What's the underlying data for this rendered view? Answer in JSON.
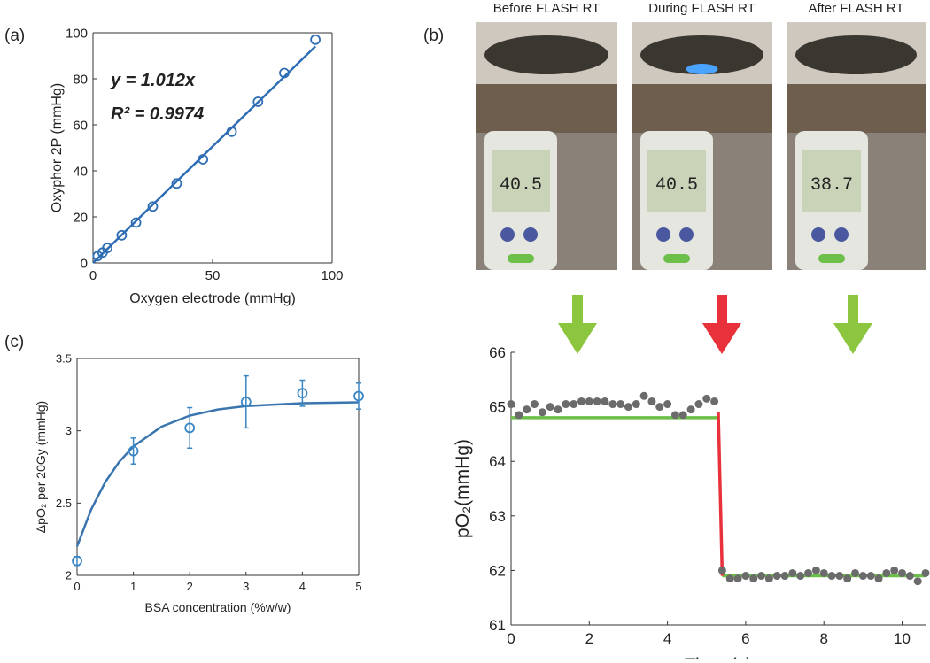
{
  "panel_labels": [
    "(a)",
    "(b)",
    "(c)"
  ],
  "photos": [
    {
      "caption": "Before FLASH RT",
      "reading": "40.5"
    },
    {
      "caption": "During FLASH RT",
      "reading": "40.5"
    },
    {
      "caption": "After FLASH RT",
      "reading": "38.7"
    }
  ],
  "chart_data": [
    {
      "type": "scatter",
      "x_label": "Oxygen electrode (mmHg)",
      "y_label": "Oxyphor 2P (mmHg)",
      "annotations": [
        "y = 1.012x",
        "R² = 0.9974"
      ],
      "x": [
        2,
        4,
        6,
        12,
        18,
        25,
        35,
        46,
        58,
        69,
        80,
        93
      ],
      "values": [
        3,
        4.5,
        6.5,
        12,
        17.5,
        24.5,
        34.5,
        45,
        57,
        70,
        82.5,
        97
      ],
      "color": "#2e6db4",
      "marker": "circle",
      "lines": [
        {
          "x": [
            0,
            93
          ],
          "y": [
            0,
            94.1
          ],
          "color": "#2e6db4"
        }
      ],
      "xlim": [
        0,
        100
      ],
      "ylim": [
        0,
        100
      ],
      "xticks": [
        0,
        50,
        100
      ],
      "yticks": [
        0,
        20,
        40,
        60,
        80,
        100
      ]
    },
    {
      "type": "scatter",
      "x_label": "BSA concentration (%w/w)",
      "y_label": "ΔpO₂ per 20Gy (mmHg)",
      "x": [
        0,
        1,
        2,
        3,
        4,
        5
      ],
      "values": [
        2.1,
        2.86,
        3.02,
        3.2,
        3.26,
        3.24
      ],
      "errors": [
        0.03,
        0.09,
        0.14,
        0.18,
        0.09,
        0.09
      ],
      "color": "#3a86c4",
      "marker": "circle",
      "lines": [
        {
          "x": [
            0,
            0.25,
            0.5,
            0.75,
            1,
            1.5,
            2,
            2.5,
            3,
            4,
            5
          ],
          "y": [
            2.2,
            2.455,
            2.645,
            2.786,
            2.892,
            3.029,
            3.105,
            3.147,
            3.171,
            3.191,
            3.197
          ],
          "color": "#3a75b0"
        }
      ],
      "xlim": [
        0,
        5
      ],
      "ylim": [
        2,
        3.5
      ],
      "xticks": [
        0,
        1,
        2,
        3,
        4,
        5
      ],
      "yticks": [
        2,
        2.5,
        3,
        3.5
      ]
    },
    {
      "type": "scatter",
      "x_label": "Time (s)",
      "y_label": "pO₂(mmHg)",
      "x": [
        0,
        0.2,
        0.4,
        0.6,
        0.8,
        1,
        1.2,
        1.4,
        1.6,
        1.8,
        2,
        2.2,
        2.4,
        2.6,
        2.8,
        3,
        3.2,
        3.4,
        3.6,
        3.8,
        4,
        4.2,
        4.4,
        4.6,
        4.8,
        5,
        5.2,
        5.4,
        5.6,
        5.8,
        6,
        6.2,
        6.4,
        6.6,
        6.8,
        7,
        7.2,
        7.4,
        7.6,
        7.8,
        8,
        8.2,
        8.4,
        8.6,
        8.8,
        9,
        9.2,
        9.4,
        9.6,
        9.8,
        10,
        10.2,
        10.4,
        10.6
      ],
      "values": [
        65.05,
        64.85,
        64.95,
        65.05,
        64.9,
        65,
        64.95,
        65.05,
        65.05,
        65.1,
        65.1,
        65.1,
        65.1,
        65.05,
        65.05,
        65,
        65.05,
        65.2,
        65.1,
        65,
        65.05,
        64.85,
        64.85,
        64.95,
        65.05,
        65.15,
        65.1,
        62,
        61.85,
        61.85,
        61.9,
        61.85,
        61.9,
        61.85,
        61.9,
        61.9,
        61.95,
        61.9,
        61.95,
        62,
        61.95,
        61.9,
        61.9,
        61.85,
        61.95,
        61.9,
        61.9,
        61.85,
        61.95,
        62,
        61.95,
        61.9,
        61.8,
        61.95
      ],
      "color": "#6b6b6b",
      "marker": "dot",
      "lines": [
        {
          "x": [
            0,
            5.3
          ],
          "y": [
            64.8,
            64.8
          ],
          "color": "#6cc04a"
        },
        {
          "x": [
            5.4,
            10.6
          ],
          "y": [
            61.9,
            61.9
          ],
          "color": "#6cc04a"
        },
        {
          "x": [
            5.3,
            5.4
          ],
          "y": [
            64.9,
            61.9
          ],
          "color": "#e8313a"
        }
      ],
      "xlim": [
        0,
        10.6
      ],
      "ylim": [
        61,
        66
      ],
      "xticks": [
        0,
        2,
        4,
        6,
        8,
        10
      ],
      "yticks": [
        61,
        62,
        63,
        64,
        65,
        66
      ]
    }
  ]
}
